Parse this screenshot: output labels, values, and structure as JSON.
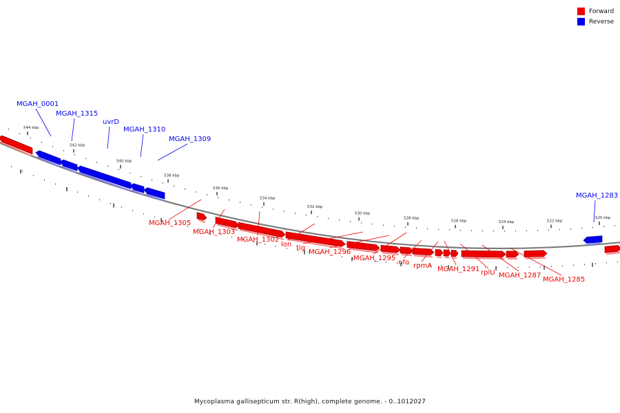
{
  "legend": {
    "forward_label": "Forward",
    "reverse_label": "Reverse"
  },
  "colors": {
    "forward": "#ee0000",
    "reverse": "#0000ee",
    "backbone": "#7a7a7a"
  },
  "caption": "Mycoplasma gallisepticum str. R(high), complete genome. - 0..1012027",
  "ticks": [
    "544 kbp",
    "542 kbp",
    "540 kbp",
    "538 kbp",
    "536 kbp",
    "534 kbp",
    "532 kbp",
    "530 kbp",
    "528 kbp",
    "526 kbp",
    "524 kbp",
    "522 kbp",
    "520 kbp"
  ],
  "reverse_genes": [
    "MGAH_0001",
    "MGAH_1315",
    "uvrD",
    "MGAH_1310",
    "MGAH_1309",
    "MGAH_1283"
  ],
  "forward_genes": [
    "MGAH_1305",
    "MGAH_1303",
    "MGAH_1302",
    "lon",
    "tig",
    "MGAH_1296",
    "MGAH_1295",
    "nfo",
    "rpmA",
    "MGAH_1291",
    "rplU",
    "MGAH_1287",
    "MGAH_1285"
  ]
}
